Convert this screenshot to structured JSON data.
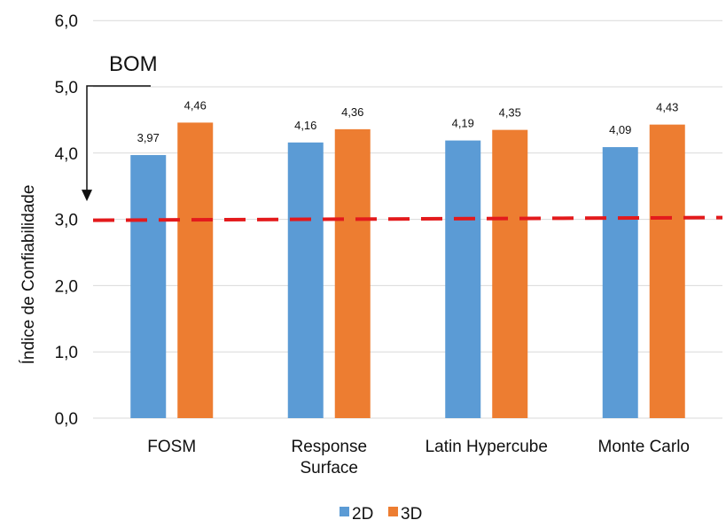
{
  "chart_data": {
    "type": "bar",
    "title": "",
    "xlabel": "",
    "ylabel": "Índice de Confiabilidade",
    "ylim": [
      0,
      6
    ],
    "yticks": [
      "0,0",
      "1,0",
      "2,0",
      "3,0",
      "4,0",
      "5,0",
      "6,0"
    ],
    "grid": true,
    "categories": [
      [
        "FOSM"
      ],
      [
        "Response",
        "Surface"
      ],
      [
        "Latin Hypercube"
      ],
      [
        "Monte Carlo"
      ]
    ],
    "series": [
      {
        "name": "2D",
        "color": "#5B9BD5",
        "values": [
          3.97,
          4.16,
          4.19,
          4.09
        ],
        "labels": [
          "3,97",
          "4,16",
          "4,19",
          "4,09"
        ]
      },
      {
        "name": "3D",
        "color": "#ED7D31",
        "values": [
          4.46,
          4.36,
          4.35,
          4.43
        ],
        "labels": [
          "4,46",
          "4,36",
          "4,35",
          "4,43"
        ]
      }
    ],
    "threshold": {
      "value": 3.0,
      "color": "#E31A1C",
      "style": "dashed"
    },
    "annotation": {
      "text": "BOM",
      "arrow_to": 3.3
    },
    "legend": "bottom"
  }
}
